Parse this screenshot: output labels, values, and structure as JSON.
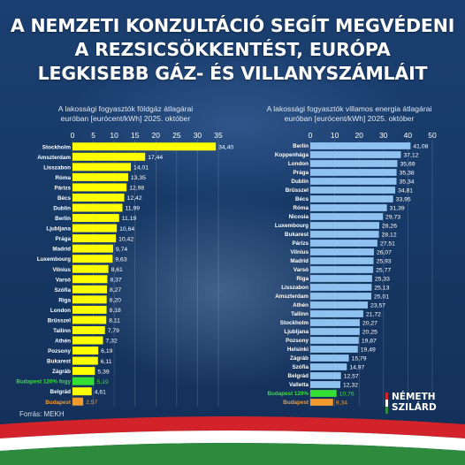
{
  "headline": {
    "line1": "A NEMZETI KONZULTÁCIÓ SEGÍT MEGVÉDENI",
    "line2": "A REZSICSÖKKENTÉST, EURÓPA",
    "line3": "LEGKISEBB GÁZ- ÉS VILLANYSZÁMLÁIT"
  },
  "source": "Forrás: MEKH",
  "brand": {
    "line1": "NÉMETH",
    "line2": "SZILÁRD"
  },
  "colors": {
    "gas_bar": "#ffff00",
    "power_bar": "#8fc2ee",
    "budapest_bar": "#f39a2e",
    "budapest_120_bar": "#35e035",
    "budapest_120_label": "#35e035",
    "budapest_label": "#f39a2e",
    "flag_red": "#d2232a",
    "flag_white": "#ffffff",
    "flag_green": "#2e8b3d",
    "background": "#14335c"
  },
  "chart_data": [
    {
      "type": "bar",
      "orientation": "horizontal",
      "subtitle_line1": "A lakossági fogyasztók földgáz átlagárai",
      "subtitle_line2": "euróban [eurócent/kWh] 2025. október",
      "xlim": [
        0,
        35
      ],
      "x_ticks": [
        "0",
        "5",
        "10",
        "15",
        "20",
        "25",
        "30",
        "35"
      ],
      "grid": true,
      "categories": [
        "Stockholm",
        "Amszterdam",
        "Lisszabon",
        "Róma",
        "Párizs",
        "Bécs",
        "Dublin",
        "Berlin",
        "Ljubljana",
        "Prága",
        "Madrid",
        "Luxembourg",
        "Vilnius",
        "Varsó",
        "Szófia",
        "Riga",
        "London",
        "Brüsszel",
        "Tallinn",
        "Athén",
        "Pozsony",
        "Bukarest",
        "Zágráb",
        "Budapest 120% fogy",
        "Belgrád",
        "Budapest"
      ],
      "values": [
        34.4,
        17.44,
        14.01,
        13.35,
        12.98,
        12.42,
        11.99,
        11.19,
        10.64,
        10.42,
        9.74,
        9.63,
        8.61,
        8.37,
        8.27,
        8.2,
        8.18,
        8.11,
        7.79,
        7.32,
        6.19,
        6.11,
        5.39,
        5.19,
        4.61,
        2.57
      ],
      "value_labels": [
        "34,40",
        "17,44",
        "14,01",
        "13,35",
        "12,98",
        "12,42",
        "11,99",
        "11,19",
        "10,64",
        "10,42",
        "9,74",
        "9,63",
        "8,61",
        "8,37",
        "8,27",
        "8,20",
        "8,18",
        "8,11",
        "7,79",
        "7,32",
        "6,19",
        "6,11",
        "5,39",
        "5,19",
        "4,61",
        "2,57"
      ]
    },
    {
      "type": "bar",
      "orientation": "horizontal",
      "subtitle_line1": "A lakossági fogyasztók villamos energia átlagárai",
      "subtitle_line2": "euróban [eurócent/kWh] 2025. október",
      "xlim": [
        0,
        50
      ],
      "x_ticks": [
        "0",
        "10",
        "20",
        "30",
        "40",
        "50"
      ],
      "grid": true,
      "categories": [
        "Berlin",
        "Koppenhága",
        "London",
        "Prága",
        "Dublin",
        "Brüsszel",
        "Bécs",
        "Róma",
        "Nicosia",
        "Luxembourg",
        "Bukarest",
        "Párizs",
        "Vilnius",
        "Madrid",
        "Varsó",
        "Riga",
        "Lisszabon",
        "Amszterdam",
        "Athén",
        "Tallinn",
        "Stockholm",
        "Ljubljana",
        "Pozsony",
        "Helsinki",
        "Zágráb",
        "Szófia",
        "Belgrád",
        "Valletta",
        "Budapest 120%",
        "Budapest"
      ],
      "values": [
        41.08,
        37.12,
        35.69,
        35.38,
        35.34,
        34.81,
        33.95,
        31.39,
        29.73,
        28.26,
        28.12,
        27.51,
        26.07,
        25.93,
        25.77,
        25.33,
        25.13,
        25.01,
        23.57,
        21.72,
        20.27,
        20.25,
        19.87,
        19.49,
        15.79,
        14.97,
        12.57,
        12.32,
        10.76,
        9.34
      ],
      "value_labels": [
        "41,08",
        "37,12",
        "35,69",
        "35,38",
        "35,34",
        "34,81",
        "33,95",
        "31,39",
        "29,73",
        "28,26",
        "28,12",
        "27,51",
        "26,07",
        "25,93",
        "25,77",
        "25,33",
        "25,13",
        "25,01",
        "23,57",
        "21,72",
        "20,27",
        "20,25",
        "19,87",
        "19,49",
        "15,79",
        "14,97",
        "12,57",
        "12,32",
        "10,76",
        "9,34"
      ]
    }
  ]
}
